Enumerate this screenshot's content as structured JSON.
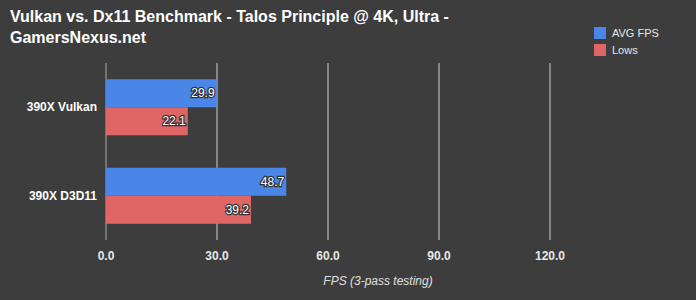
{
  "chart_data": {
    "type": "bar",
    "orientation": "horizontal",
    "title": "Vulkan vs. Dx11 Benchmark - Talos Principle @ 4K, Ultra - GamersNexus.net",
    "x_label": "FPS (3-pass testing)",
    "categories": [
      "390X Vulkan",
      "390X D3D11"
    ],
    "series": [
      {
        "name": "AVG FPS",
        "color": "#4a86e8",
        "values": [
          29.9,
          48.7
        ]
      },
      {
        "name": "Lows",
        "color": "#e06666",
        "values": [
          22.1,
          39.2
        ]
      }
    ],
    "xlim": [
      0,
      120
    ],
    "xticks": [
      {
        "value": 0,
        "label": "0.0"
      },
      {
        "value": 30,
        "label": "30.0"
      },
      {
        "value": 60,
        "label": "60.0"
      },
      {
        "value": 90,
        "label": "90.0"
      },
      {
        "value": 120,
        "label": "120.0"
      }
    ],
    "grid": true,
    "legend": "top-right",
    "data_labels": true
  }
}
